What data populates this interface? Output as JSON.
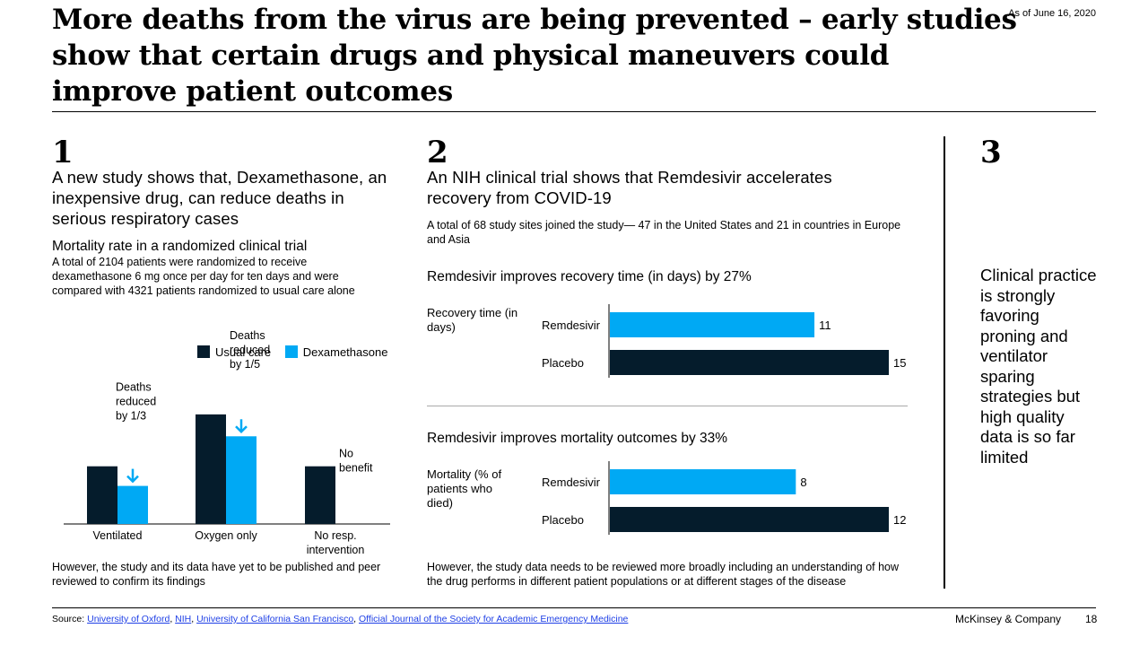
{
  "title": "More deaths from the virus are being prevented – early studies show that certain drugs and physical maneuvers could improve patient outcomes",
  "as_of": "As of June 16, 2020",
  "colors": {
    "dark": "#051c2c",
    "blue": "#00a9f4",
    "grey": "#aaaaaa"
  },
  "section1": {
    "number": "1",
    "heading": "A new study shows that, Dexamethasone, an inexpensive drug, can reduce deaths in serious respiratory cases",
    "chart_title": "Mortality rate in a randomized clinical trial",
    "chart_desc": "A total of 2104 patients were randomized to receive dexamethasone 6 mg once per day for ten days and were compared with 4321 patients randomized to usual care alone",
    "footnote": "However, the study and its data have yet to be published and peer reviewed to confirm its findings"
  },
  "section2": {
    "number": "2",
    "heading": "An NIH clinical trial shows that Remdesivir accelerates recovery from COVID-19",
    "desc": "A total of 68 study sites joined the study— 47 in the United States and 21 in countries in Europe and Asia",
    "footnote": "However, the study data needs to be reviewed more broadly including an understanding of how the drug performs in different patient populations or at different stages of the disease"
  },
  "section3": {
    "number": "3",
    "text": "Clinical practice is strongly favoring proning and ventilator sparing strategies but high quality data is so far limited"
  },
  "chart_data": [
    {
      "type": "bar",
      "categories": [
        "Ventilated",
        "Oxygen only",
        "No resp. intervention"
      ],
      "series": [
        {
          "name": "Usual care",
          "values": [
            1.0,
            1.9,
            1.0
          ]
        },
        {
          "name": "Dexamethasone",
          "values": [
            0.66,
            1.52,
            null
          ]
        }
      ],
      "ylim": [
        0,
        2.1
      ],
      "annotations": [
        "Deaths reduced by 1/3",
        "Deaths reduced by 1/5",
        "No benefit"
      ],
      "legend": "top"
    },
    {
      "type": "bar",
      "orientation": "horizontal",
      "title": "Remdesivir improves recovery time (in days) by 27%",
      "ylabel": "Recovery time (in days)",
      "categories": [
        "Remdesivir",
        "Placebo"
      ],
      "values": [
        11,
        15
      ],
      "xlim": [
        0,
        15
      ]
    },
    {
      "type": "bar",
      "orientation": "horizontal",
      "title": "Remdesivir improves mortality outcomes by 33%",
      "ylabel": "Mortality (% of patients who died)",
      "categories": [
        "Remdesivir",
        "Placebo"
      ],
      "values": [
        8,
        12
      ],
      "xlim": [
        0,
        12
      ]
    }
  ],
  "footer": {
    "source_label": "Source: ",
    "sources": [
      "University of Oxford",
      "NIH",
      "University of California San Francisco",
      "Official Journal of the Society for Academic Emergency Medicine"
    ],
    "brand": "McKinsey & Company",
    "page": "18"
  }
}
